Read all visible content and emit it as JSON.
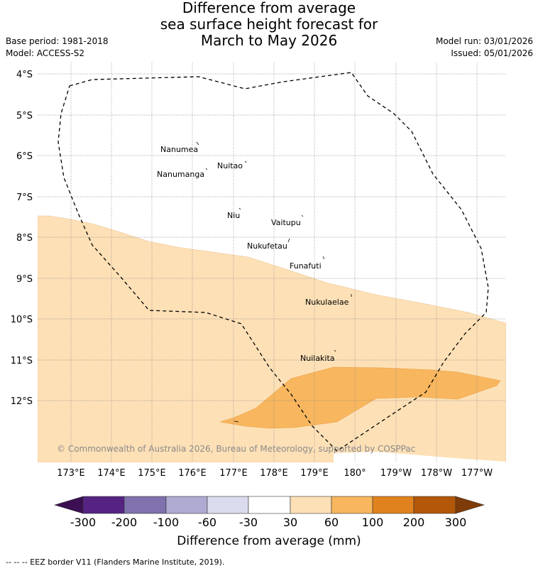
{
  "title": {
    "line1": "Difference from average",
    "line2": "sea surface height forecast for",
    "line3": "March to May 2026"
  },
  "meta": {
    "base_period": "Base period: 1981-2018",
    "model": "Model: ACCESS-S2",
    "model_run": "Model run: 03/01/2026",
    "issued": "Issued: 05/01/2026"
  },
  "map": {
    "lat_labels": [
      "4°S",
      "5°S",
      "6°S",
      "7°S",
      "8°S",
      "9°S",
      "10°S",
      "11°S",
      "12°S"
    ],
    "lon_labels": [
      "173°E",
      "174°E",
      "175°E",
      "176°E",
      "177°E",
      "178°E",
      "179°E",
      "180°",
      "179°W",
      "178°W",
      "177°W"
    ],
    "islands": [
      "Nanumea",
      "Nuitao",
      "Nanumanga",
      "Niu",
      "Vaitupu",
      "Nukufetau",
      "Funafuti",
      "Nukulaelae",
      "Nuilakita"
    ],
    "copyright": "© Commonwealth of Australia 2026, Bureau of Meteorology, supported by COSPPac",
    "colors": {
      "light_orange": "#fde0b6",
      "mid_orange": "#f8b65e",
      "border": "#000000",
      "grid": "#888888"
    }
  },
  "colorbar": {
    "ticks": [
      "-300",
      "-200",
      "-100",
      "-60",
      "-30",
      "30",
      "60",
      "100",
      "200",
      "300"
    ],
    "colors": [
      "#3b0f52",
      "#552383",
      "#7f72ad",
      "#aeaad2",
      "#dadbed",
      "#ffffff",
      "#fde0b6",
      "#f8b65e",
      "#e0821d",
      "#b35808",
      "#7f3b08"
    ],
    "label": "Difference from average (mm)"
  },
  "footer": {
    "legend_line": "--  --  -- EEZ border V11 (Flanders Marine Institute, 2019)."
  }
}
